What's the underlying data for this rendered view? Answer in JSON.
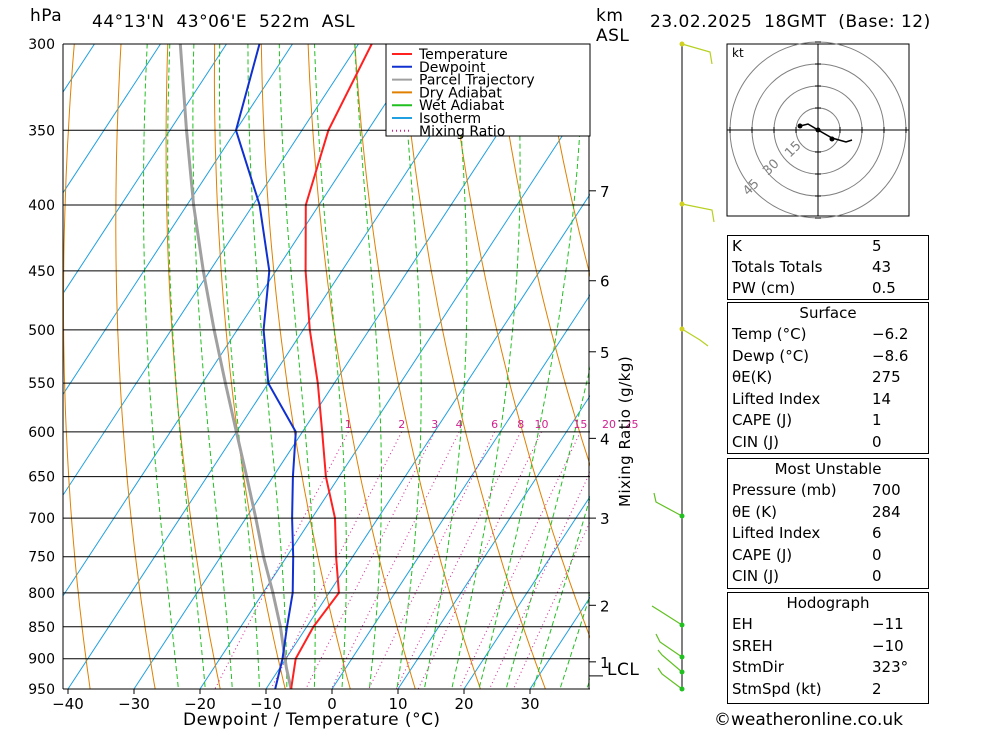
{
  "header": {
    "unit_left": "hPa",
    "location": "44°13'N  43°06'E  522m  ASL",
    "unit_km": "km",
    "unit_asl": "ASL",
    "datetime": "23.02.2025  18GMT  (Base: 12)"
  },
  "legend": {
    "items": [
      {
        "label": "Temperature",
        "color": "#ff2020",
        "style": "solid"
      },
      {
        "label": "Dewpoint",
        "color": "#1030d0",
        "style": "solid"
      },
      {
        "label": "Parcel Trajectory",
        "color": "#a0a0a0",
        "style": "solid"
      },
      {
        "label": "Dry Adiabat",
        "color": "#e08000",
        "style": "solid"
      },
      {
        "label": "Wet Adiabat",
        "color": "#20c020",
        "style": "solid"
      },
      {
        "label": "Isotherm",
        "color": "#20a0e0",
        "style": "solid"
      },
      {
        "label": "Mixing Ratio",
        "color": "#d02090",
        "style": "dotted"
      }
    ]
  },
  "axes": {
    "xlabel": "Dewpoint / Temperature (°C)",
    "ylabel_right": "Mixing Ratio (g/kg)",
    "pressure_ticks": [
      "300",
      "350",
      "400",
      "450",
      "500",
      "550",
      "600",
      "650",
      "700",
      "750",
      "800",
      "850",
      "900",
      "950"
    ],
    "temp_ticks": [
      "−40",
      "−30",
      "−20",
      "−10",
      "0",
      "10",
      "20",
      "30"
    ],
    "km_ticks": [
      "7",
      "6",
      "5",
      "4",
      "3",
      "2",
      "1"
    ],
    "lcl_label": "LCL",
    "mixing_ratio_labels": [
      "1",
      "2",
      "3",
      "4",
      "6",
      "8",
      "10",
      "15",
      "20",
      "25"
    ]
  },
  "chart_data": {
    "type": "line",
    "title": "44°13'N  43°06'E  522m  ASL",
    "xlabel": "Dewpoint / Temperature (°C)",
    "ylabel": "hPa",
    "skew_log_p": true,
    "xlim": [
      -40,
      40
    ],
    "ylim": [
      950,
      300
    ],
    "series": [
      {
        "name": "Temperature",
        "color": "#ff2020",
        "points": [
          [
            950,
            -6.2
          ],
          [
            900,
            -8.5
          ],
          [
            850,
            -9.0
          ],
          [
            800,
            -8.5
          ],
          [
            750,
            -12.5
          ],
          [
            700,
            -16.5
          ],
          [
            650,
            -22.0
          ],
          [
            600,
            -27.0
          ],
          [
            550,
            -32.5
          ],
          [
            500,
            -39.0
          ],
          [
            450,
            -45.5
          ],
          [
            400,
            -52.0
          ],
          [
            350,
            -56.0
          ],
          [
            300,
            -58.0
          ]
        ]
      },
      {
        "name": "Dewpoint",
        "color": "#1030d0",
        "points": [
          [
            950,
            -8.6
          ],
          [
            900,
            -10.5
          ],
          [
            850,
            -13.0
          ],
          [
            800,
            -15.5
          ],
          [
            750,
            -19.0
          ],
          [
            700,
            -23.0
          ],
          [
            650,
            -27.0
          ],
          [
            600,
            -31.0
          ],
          [
            550,
            -40.0
          ],
          [
            500,
            -46.0
          ],
          [
            450,
            -51.0
          ],
          [
            400,
            -59.0
          ],
          [
            350,
            -70.0
          ],
          [
            300,
            -75.0
          ]
        ]
      },
      {
        "name": "Parcel Trajectory",
        "color": "#a0a0a0",
        "points": [
          [
            950,
            -6.2
          ],
          [
            915,
            -9.0
          ],
          [
            850,
            -14.0
          ],
          [
            800,
            -18.5
          ],
          [
            750,
            -23.5
          ],
          [
            700,
            -28.5
          ],
          [
            650,
            -34.0
          ],
          [
            600,
            -40.0
          ],
          [
            550,
            -46.5
          ],
          [
            500,
            -53.5
          ],
          [
            450,
            -61.0
          ],
          [
            400,
            -69.0
          ],
          [
            350,
            -77.5
          ],
          [
            300,
            -87.0
          ]
        ]
      }
    ]
  },
  "hodograph": {
    "unit": "kt",
    "ring_labels": [
      "15",
      "30",
      "45"
    ]
  },
  "indices_top": [
    {
      "label": "K",
      "value": "5"
    },
    {
      "label": "Totals Totals",
      "value": "43"
    },
    {
      "label": "PW (cm)",
      "value": "0.5"
    }
  ],
  "surface": {
    "title": "Surface",
    "rows": [
      {
        "label": "Temp (°C)",
        "value": "−6.2"
      },
      {
        "label": "Dewp (°C)",
        "value": "−8.6"
      },
      {
        "label": "θE(K)",
        "value": "275"
      },
      {
        "label": "Lifted Index",
        "value": "14"
      },
      {
        "label": "CAPE (J)",
        "value": "1"
      },
      {
        "label": "CIN (J)",
        "value": "0"
      }
    ]
  },
  "most_unstable": {
    "title": "Most Unstable",
    "rows": [
      {
        "label": "Pressure (mb)",
        "value": "700"
      },
      {
        "label": "θE (K)",
        "value": "284"
      },
      {
        "label": "Lifted Index",
        "value": "6"
      },
      {
        "label": "CAPE (J)",
        "value": "0"
      },
      {
        "label": "CIN (J)",
        "value": "0"
      }
    ]
  },
  "hodograph_table": {
    "title": "Hodograph",
    "rows": [
      {
        "label": "EH",
        "value": "−11"
      },
      {
        "label": "SREH",
        "value": "−10"
      },
      {
        "label": "StmDir",
        "value": "323°"
      },
      {
        "label": "StmSpd (kt)",
        "value": "2"
      }
    ]
  },
  "credit": "©weatheronline.co.uk"
}
